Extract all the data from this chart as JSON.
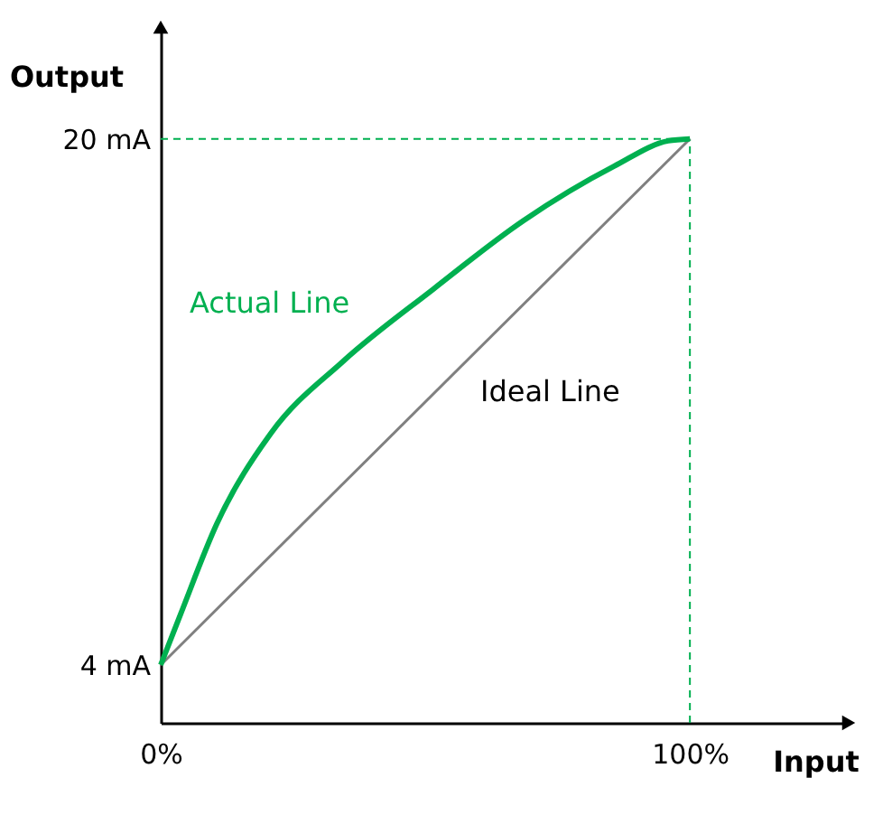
{
  "chart_data": {
    "type": "line",
    "xlabel": "Input",
    "ylabel": "Output",
    "xlim": [
      0,
      130
    ],
    "ylim": [
      2.24,
      23.4
    ],
    "xticks": [
      {
        "value": 0,
        "label": "0%"
      },
      {
        "value": 100,
        "label": "100%"
      }
    ],
    "yticks": [
      {
        "value": 4,
        "label": "4 mA"
      },
      {
        "value": 20,
        "label": "20 mA"
      }
    ],
    "grid": false,
    "line_style": "solid",
    "marker": "none",
    "series": [
      {
        "name": "Actual Line",
        "color": "#00b050",
        "x": [
          0,
          3.75,
          10.6,
          20.8,
          34.5,
          51.5,
          68.6,
          85.7,
          95.9,
          100
        ],
        "values": [
          4,
          5.54,
          8.29,
          11.04,
          13.24,
          15.43,
          17.52,
          19.17,
          19.94,
          20
        ]
      },
      {
        "name": "Ideal Line",
        "color": "#808080",
        "x": [
          0,
          100
        ],
        "values": [
          4,
          20
        ]
      }
    ],
    "ref_lines": [
      {
        "axis": "x",
        "value": 100,
        "color": "#00b050",
        "line_style": "dashed"
      },
      {
        "axis": "y",
        "value": 20,
        "color": "#00b050",
        "line_style": "dashed"
      }
    ]
  }
}
